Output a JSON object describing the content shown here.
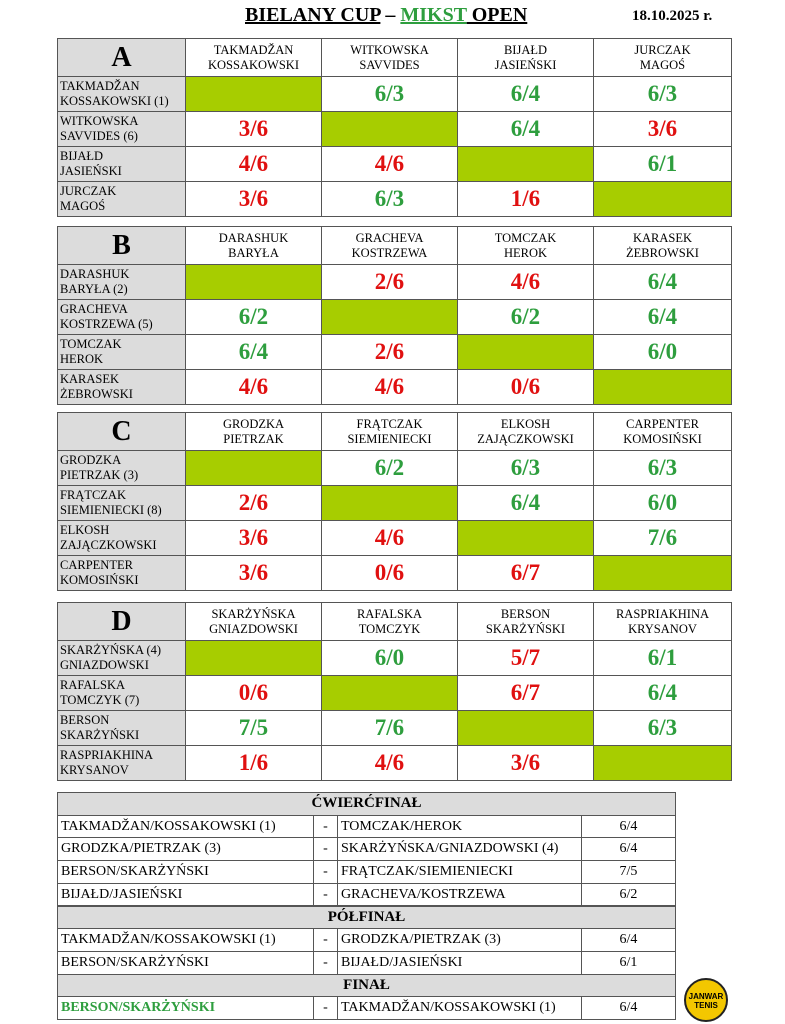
{
  "header": {
    "title": [
      "BIELANY CUP",
      " – ",
      "MIKST",
      " OPEN"
    ],
    "date": "18.10.2025 r."
  },
  "groups": [
    {
      "letter": "A",
      "columns": [
        [
          "TAKMADŽAN",
          "KOSSAKOWSKI"
        ],
        [
          "WITKOWSKA",
          "SAVVIDES"
        ],
        [
          "BIJAŁD",
          "JASIEŃSKI"
        ],
        [
          "JURCZAK",
          "MAGOŚ"
        ]
      ],
      "rows": [
        {
          "name": [
            "TAKMADŽAN",
            "KOSSAKOWSKI (1)"
          ],
          "scores": [
            null,
            "6/3",
            "6/4",
            "6/3"
          ]
        },
        {
          "name": [
            "WITKOWSKA",
            "SAVVIDES (6)"
          ],
          "scores": [
            "3/6",
            null,
            "6/4",
            "3/6"
          ]
        },
        {
          "name": [
            "BIJAŁD",
            "JASIEŃSKI"
          ],
          "scores": [
            "4/6",
            "4/6",
            null,
            "6/1"
          ]
        },
        {
          "name": [
            "JURCZAK",
            "MAGOŚ"
          ],
          "scores": [
            "3/6",
            "6/3",
            "1/6",
            null
          ]
        }
      ]
    },
    {
      "letter": "B",
      "columns": [
        [
          "DARASHUK",
          "BARYŁA"
        ],
        [
          "GRACHEVA",
          "KOSTRZEWA"
        ],
        [
          "TOMCZAK",
          "HEROK"
        ],
        [
          "KARASEK",
          "ŻEBROWSKI"
        ]
      ],
      "rows": [
        {
          "name": [
            "DARASHUK",
            "BARYŁA (2)"
          ],
          "scores": [
            null,
            "2/6",
            "4/6",
            "6/4"
          ]
        },
        {
          "name": [
            "GRACHEVA",
            "KOSTRZEWA (5)"
          ],
          "scores": [
            "6/2",
            null,
            "6/2",
            "6/4"
          ]
        },
        {
          "name": [
            "TOMCZAK",
            "HEROK"
          ],
          "scores": [
            "6/4",
            "2/6",
            null,
            "6/0"
          ]
        },
        {
          "name": [
            "KARASEK",
            "ŻEBROWSKI"
          ],
          "scores": [
            "4/6",
            "4/6",
            "0/6",
            null
          ]
        }
      ]
    },
    {
      "letter": "C",
      "columns": [
        [
          "GRODZKA",
          "PIETRZAK"
        ],
        [
          "FRĄTCZAK",
          "SIEMIENIECKI"
        ],
        [
          "ELKOSH",
          "ZAJĄCZKOWSKI"
        ],
        [
          "CARPENTER",
          "KOMOSIŃSKI"
        ]
      ],
      "rows": [
        {
          "name": [
            "GRODZKA",
            "PIETRZAK (3)"
          ],
          "scores": [
            null,
            "6/2",
            "6/3",
            "6/3"
          ]
        },
        {
          "name": [
            "FRĄTCZAK",
            "SIEMIENIECKI (8)"
          ],
          "scores": [
            "2/6",
            null,
            "6/4",
            "6/0"
          ]
        },
        {
          "name": [
            "ELKOSH",
            "ZAJĄCZKOWSKI"
          ],
          "scores": [
            "3/6",
            "4/6",
            null,
            "7/6"
          ]
        },
        {
          "name": [
            "CARPENTER",
            "KOMOSIŃSKI"
          ],
          "scores": [
            "3/6",
            "0/6",
            "6/7",
            null
          ]
        }
      ]
    },
    {
      "letter": "D",
      "columns": [
        [
          "SKARŻYŃSKA",
          "GNIAZDOWSKI"
        ],
        [
          "RAFALSKA",
          "TOMCZYK"
        ],
        [
          "BERSON",
          "SKARŻYŃSKI"
        ],
        [
          "RASPRIAKHINA",
          "KRYSANOV"
        ]
      ],
      "rows": [
        {
          "name": [
            "SKARŻYŃSKA (4)",
            "GNIAZDOWSKI"
          ],
          "scores": [
            null,
            "6/0",
            "5/7",
            "6/1"
          ]
        },
        {
          "name": [
            "RAFALSKA",
            "TOMCZYK (7)"
          ],
          "scores": [
            "0/6",
            null,
            "6/7",
            "6/4"
          ]
        },
        {
          "name": [
            "BERSON",
            "SKARŻYŃSKI"
          ],
          "scores": [
            "7/5",
            "7/6",
            null,
            "6/3"
          ]
        },
        {
          "name": [
            "RASPRIAKHINA",
            "KRYSANOV"
          ],
          "scores": [
            "1/6",
            "4/6",
            "3/6",
            null
          ]
        }
      ]
    }
  ],
  "knockout": [
    {
      "title": "ĆWIERĆFINAŁ",
      "matches": [
        {
          "team1": "TAKMADŽAN/KOSSAKOWSKI (1)",
          "sep": "-",
          "team2": "TOMCZAK/HEROK",
          "score": "6/4"
        },
        {
          "team1": "GRODZKA/PIETRZAK (3)",
          "sep": "-",
          "team2": "SKARŻYŃSKA/GNIAZDOWSKI (4)",
          "score": "6/4"
        },
        {
          "team1": "BERSON/SKARŻYŃSKI",
          "sep": "-",
          "team2": "FRĄTCZAK/SIEMIENIECKI",
          "score": "7/5"
        },
        {
          "team1": "BIJAŁD/JASIEŃSKI",
          "sep": "-",
          "team2": "GRACHEVA/KOSTRZEWA",
          "score": "6/2"
        }
      ]
    },
    {
      "title": "PÓŁFINAŁ",
      "matches": [
        {
          "team1": "TAKMADŽAN/KOSSAKOWSKI (1)",
          "sep": "-",
          "team2": "GRODZKA/PIETRZAK (3)",
          "score": "6/4"
        },
        {
          "team1": "BERSON/SKARŻYŃSKI",
          "sep": "-",
          "team2": "BIJAŁD/JASIEŃSKI",
          "score": "6/1"
        }
      ]
    },
    {
      "title": "FINAŁ",
      "matches": [
        {
          "team1": "BERSON/SKARŻYŃSKI",
          "sep": "-",
          "team2": "TAKMADŽAN/KOSSAKOWSKI (1)",
          "score": "6/4",
          "winner_color": "#2e9e3e"
        }
      ]
    }
  ],
  "logo": [
    "JANWAR",
    "TENIS"
  ]
}
